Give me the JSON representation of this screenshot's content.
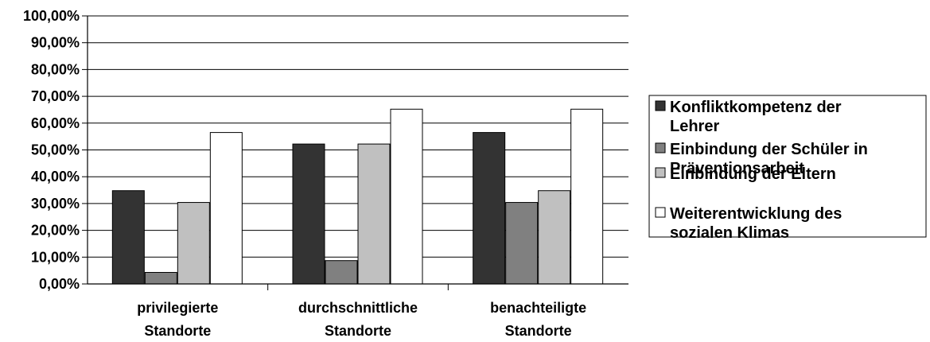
{
  "chart_data": {
    "type": "bar",
    "categories": [
      [
        "privilegierte",
        "Standorte"
      ],
      [
        "durchschnittliche",
        "Standorte"
      ],
      [
        "benachteiligte",
        "Standorte"
      ]
    ],
    "yticks": [
      "0,00%",
      "10,00%",
      "20,00%",
      "30,00%",
      "40,00%",
      "50,00%",
      "60,00%",
      "70,00%",
      "80,00%",
      "90,00%",
      "100,00%"
    ],
    "ylim": [
      0,
      100
    ],
    "grid": true,
    "legend_position": "right",
    "series": [
      {
        "name": [
          "Konfliktkompetenz der",
          "Lehrer"
        ],
        "color": "#333333",
        "values": [
          34.8,
          52.2,
          56.5
        ]
      },
      {
        "name": [
          "Einbindung der Schüler in",
          "Präventionsarbeit"
        ],
        "color": "#808080",
        "values": [
          4.3,
          8.7,
          30.4
        ]
      },
      {
        "name": [
          "Einbindung der Eltern"
        ],
        "color": "#c0c0c0",
        "values": [
          30.4,
          52.2,
          34.8
        ]
      },
      {
        "name": [
          "Weiterentwicklung des",
          "sozialen Klimas"
        ],
        "color": "#ffffff",
        "values": [
          56.5,
          65.2,
          65.2
        ]
      }
    ]
  }
}
